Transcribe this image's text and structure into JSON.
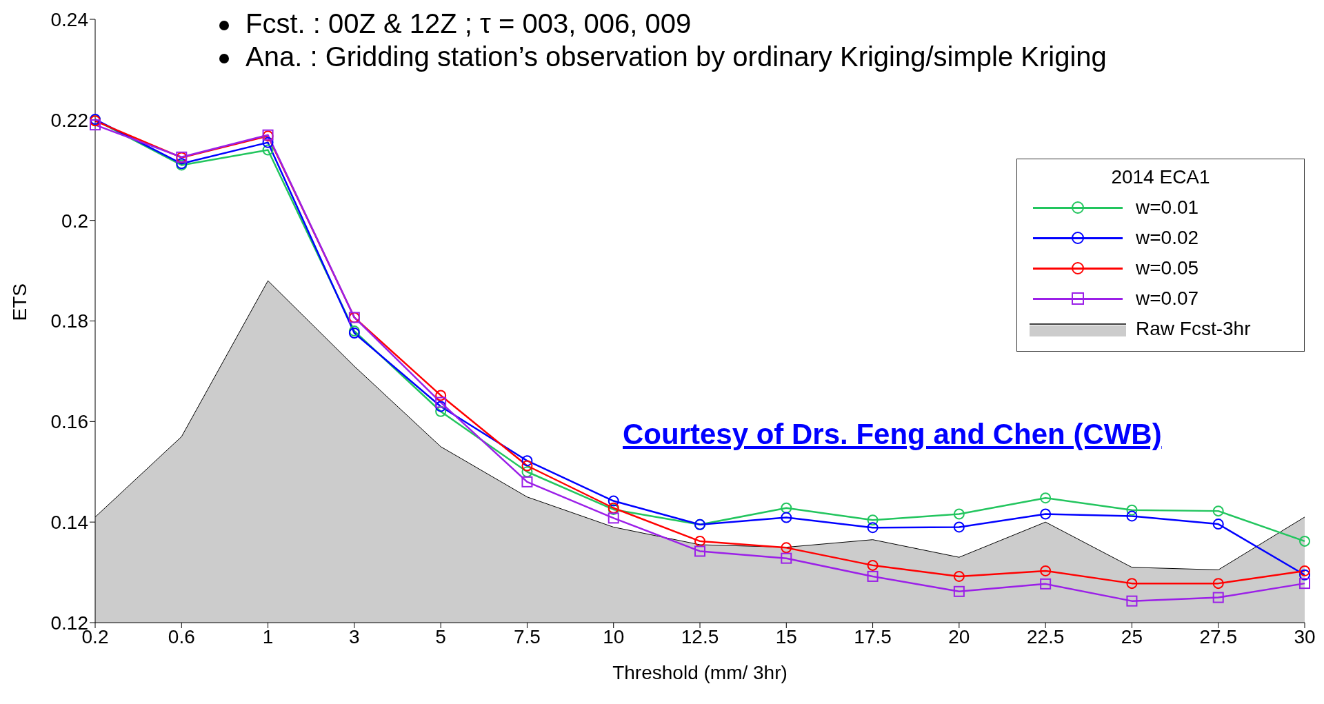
{
  "chart_data": {
    "type": "line",
    "xlabel": "Threshold (mm/ 3hr)",
    "ylabel": "ETS",
    "categories": [
      "0.2",
      "0.6",
      "1",
      "3",
      "5",
      "7.5",
      "10",
      "12.5",
      "15",
      "17.5",
      "20",
      "22.5",
      "25",
      "27.5",
      "30"
    ],
    "ylim": [
      0.12,
      0.24
    ],
    "yticks": [
      0.12,
      0.14,
      0.16,
      0.18,
      0.2,
      0.22,
      0.24
    ],
    "grid": false,
    "legend": "right",
    "legend_title": "2014 ECA1",
    "series": [
      {
        "name": "Raw Fcst-3hr",
        "type": "area",
        "color": "#cccccc",
        "values": [
          0.141,
          0.157,
          0.188,
          0.171,
          0.155,
          0.145,
          0.139,
          0.1355,
          0.135,
          0.1365,
          0.133,
          0.14,
          0.131,
          0.1305,
          0.141
        ]
      },
      {
        "name": "w=0.01",
        "type": "line",
        "marker": "circle",
        "color": "#22c55e",
        "values": [
          0.22,
          0.211,
          0.214,
          0.178,
          0.162,
          0.15,
          0.1425,
          0.1395,
          0.1428,
          0.1404,
          0.1416,
          0.1448,
          0.1424,
          0.1422,
          0.1362
        ]
      },
      {
        "name": "w=0.02",
        "type": "line",
        "marker": "circle",
        "color": "#0000ff",
        "values": [
          0.2201,
          0.2113,
          0.2155,
          0.1776,
          0.163,
          0.1522,
          0.1442,
          0.1395,
          0.1409,
          0.1389,
          0.139,
          0.1416,
          0.1412,
          0.1396,
          0.1295
        ]
      },
      {
        "name": "w=0.05",
        "type": "line",
        "marker": "circle",
        "color": "#ff0000",
        "values": [
          0.2198,
          0.2125,
          0.2168,
          0.1807,
          0.1652,
          0.1512,
          0.1428,
          0.1362,
          0.1349,
          0.1314,
          0.1292,
          0.1303,
          0.1278,
          0.1278,
          0.1303
        ]
      },
      {
        "name": "w=0.07",
        "type": "line",
        "marker": "square",
        "color": "#9b1fe8",
        "values": [
          0.219,
          0.2126,
          0.217,
          0.1807,
          0.1638,
          0.148,
          0.1408,
          0.1342,
          0.1328,
          0.1292,
          0.1262,
          0.1277,
          0.1243,
          0.125,
          0.1278
        ]
      }
    ],
    "annotations": [
      "Fcst. : 00Z & 12Z ; τ = 003, 006, 009",
      "Ana. : Gridding station’s observation by ordinary Kriging/simple Kriging",
      "Courtesy of Drs. Feng and Chen (CWB)"
    ]
  }
}
